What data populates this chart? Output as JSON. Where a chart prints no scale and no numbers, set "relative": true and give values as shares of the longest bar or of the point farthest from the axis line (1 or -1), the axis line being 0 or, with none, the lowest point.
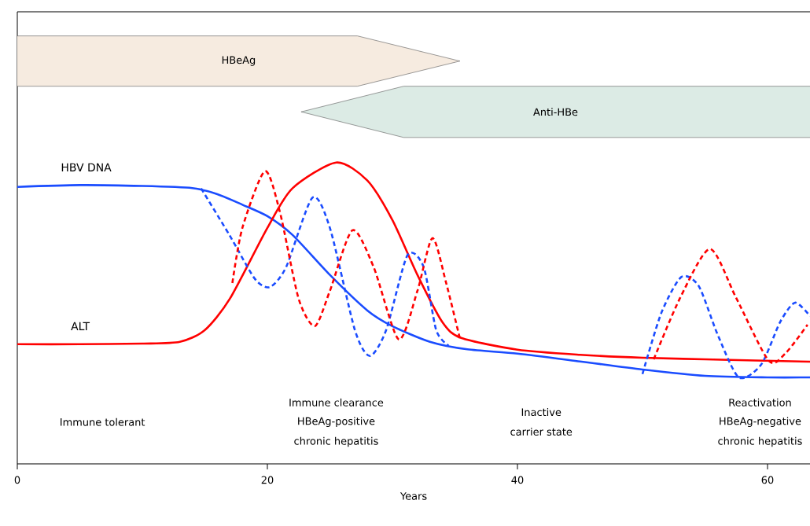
{
  "chart_data": {
    "type": "line",
    "relative": true,
    "xlabel": "Years",
    "xlim": [
      0,
      63.4
    ],
    "xticks": [
      0,
      20,
      40,
      60
    ],
    "tick_labels": "x",
    "grid": false,
    "line_style": "solid",
    "marker": "none",
    "series": [
      {
        "name": "HBV DNA",
        "color": "#1a4cff",
        "x": [
          0,
          5,
          10,
          14,
          16,
          18,
          20,
          22,
          25,
          28,
          30,
          33,
          36,
          40,
          45,
          50,
          55,
          60,
          63.4
        ],
        "values": [
          0.919,
          0.925,
          0.922,
          0.915,
          0.895,
          0.86,
          0.822,
          0.76,
          0.627,
          0.509,
          0.457,
          0.405,
          0.38,
          0.366,
          0.34,
          0.313,
          0.292,
          0.287,
          0.287
        ]
      },
      {
        "name": "ALT",
        "color": "#ff0000",
        "x": [
          0,
          5,
          10,
          13,
          15,
          17,
          20,
          22,
          25.5,
          28,
          30,
          32,
          34,
          35.5,
          40,
          45,
          50,
          55,
          63.4
        ],
        "values": [
          0.397,
          0.397,
          0.399,
          0.405,
          0.444,
          0.548,
          0.783,
          0.914,
          1,
          0.94,
          0.809,
          0.627,
          0.47,
          0.418,
          0.379,
          0.362,
          0.352,
          0.347,
          0.339
        ]
      },
      {
        "color": "#1a4cff",
        "line_style": "dashed",
        "x": [
          14.7,
          17,
          19,
          20.2,
          21.5,
          23.6,
          25,
          27,
          28.2,
          29.5,
          31.2,
          32.5,
          33.5,
          34.5,
          42,
          50,
          51.5,
          53.1,
          54.5,
          56,
          57.7,
          59.5,
          61,
          62.2,
          63.4
        ],
        "values": [
          0.914,
          0.757,
          0.614,
          0.587,
          0.653,
          0.883,
          0.783,
          0.444,
          0.358,
          0.444,
          0.692,
          0.653,
          0.444,
          0.392,
          null,
          0.298,
          0.5,
          0.62,
          0.59,
          0.43,
          0.287,
          0.33,
          0.47,
          0.535,
          0.49
        ]
      },
      {
        "color": "#ff0000",
        "line_style": "dashed",
        "x": [
          17.2,
          18,
          19.8,
          21,
          22.5,
          23.8,
          25,
          26.8,
          28.5,
          30.5,
          32,
          33.2,
          34.3,
          35.4,
          43,
          50.9,
          53,
          55.4,
          57.5,
          60.1,
          61.5,
          63.2
        ],
        "values": [
          0.6,
          0.783,
          0.971,
          0.836,
          0.548,
          0.457,
          0.574,
          0.775,
          0.653,
          0.413,
          0.574,
          0.749,
          0.6,
          0.415,
          null,
          0.347,
          0.55,
          0.713,
          0.55,
          0.342,
          0.37,
          0.462
        ]
      }
    ],
    "annotations": [
      "HBeAg",
      "Anti-HBe",
      "Immune tolerant",
      "Immune clearance",
      "HBeAg-positive",
      "chronic hepatitis",
      "Inactive",
      "carrier state",
      "Reactivation",
      "HBeAg-negative",
      "chronic hepatitis"
    ]
  }
}
